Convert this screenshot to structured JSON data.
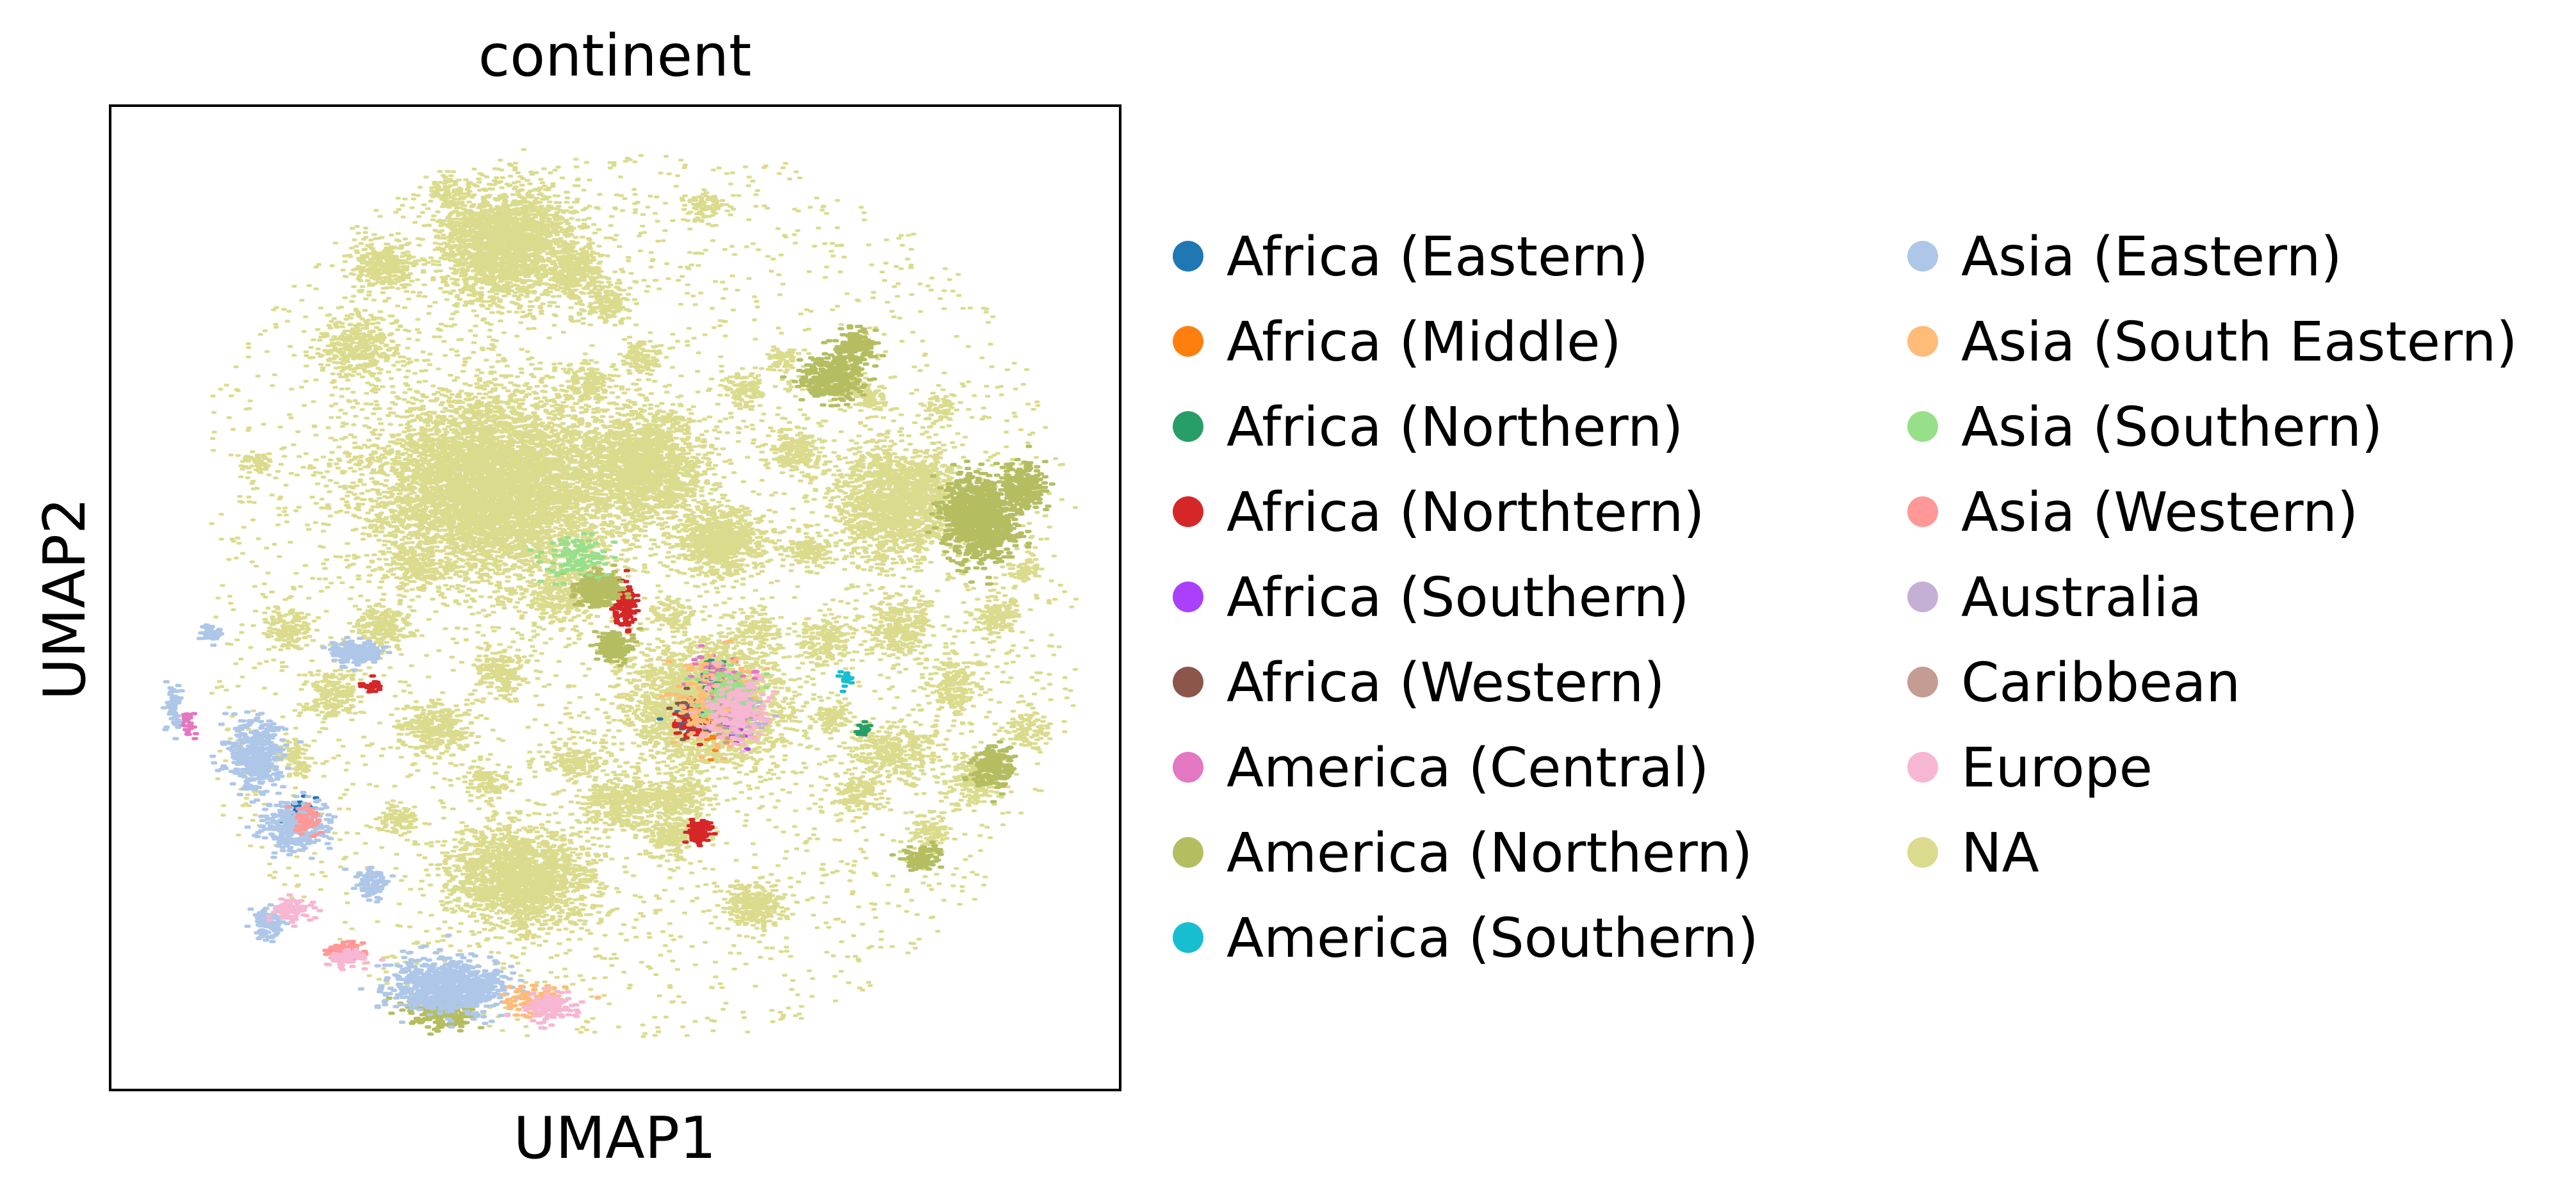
{
  "chart_data": {
    "type": "scatter",
    "title": "continent",
    "xlabel": "UMAP1",
    "ylabel": "UMAP2",
    "xticks": [],
    "yticks": [],
    "grid": false,
    "legend_placement": "right, two columns",
    "series": [
      {
        "name": "Africa (Eastern)",
        "color": "#1f77b4"
      },
      {
        "name": "Africa (Middle)",
        "color": "#ff7f0e"
      },
      {
        "name": "Africa (Northern)",
        "color": "#279e68"
      },
      {
        "name": "Africa (Northtern)",
        "color": "#d62728"
      },
      {
        "name": "Africa (Southern)",
        "color": "#aa40fc"
      },
      {
        "name": "Africa (Western)",
        "color": "#8c564b"
      },
      {
        "name": "America (Central)",
        "color": "#e377c2"
      },
      {
        "name": "America (Northern)",
        "color": "#b5bd61"
      },
      {
        "name": "America (Southern)",
        "color": "#17becf"
      },
      {
        "name": "Asia (Eastern)",
        "color": "#aec7e8"
      },
      {
        "name": "Asia (South Eastern)",
        "color": "#ffbb78"
      },
      {
        "name": "Asia (Southern)",
        "color": "#98df8a"
      },
      {
        "name": "Asia (Western)",
        "color": "#ff9896"
      },
      {
        "name": "Australia",
        "color": "#c5b0d5"
      },
      {
        "name": "Caribbean",
        "color": "#c49c94"
      },
      {
        "name": "Europe",
        "color": "#f7b6d2"
      },
      {
        "name": "NA",
        "color": "#dbdb8d"
      }
    ]
  }
}
